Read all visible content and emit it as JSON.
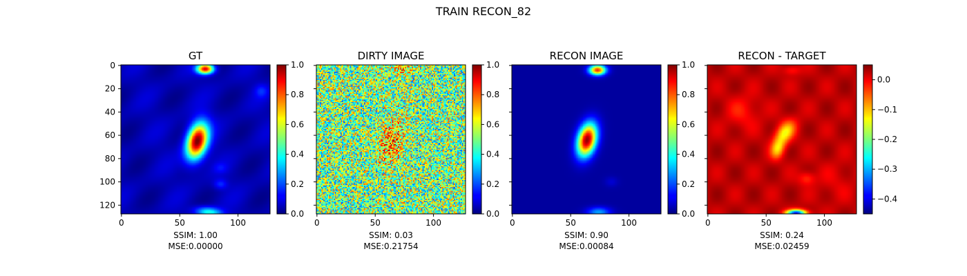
{
  "figure": {
    "title": "TRAIN RECON_82"
  },
  "chart_data": [
    {
      "type": "heatmap",
      "title": "GT",
      "colormap": "jet",
      "content": "gt",
      "x_ticks": [
        "0",
        "50",
        "100"
      ],
      "y_ticks": [
        "0",
        "20",
        "40",
        "60",
        "80",
        "100",
        "120"
      ],
      "xlim": [
        0,
        128
      ],
      "ylim": [
        0,
        128
      ],
      "colorbar": {
        "range": [
          0,
          1
        ],
        "ticks": [
          "0.0",
          "0.2",
          "0.4",
          "0.6",
          "0.8",
          "1.0"
        ]
      },
      "caption": [
        "SSIM: 1.00",
        "MSE:0.00000"
      ]
    },
    {
      "type": "heatmap",
      "title": "DIRTY IMAGE",
      "colormap": "jet",
      "content": "dirty",
      "x_ticks": [
        "0",
        "50",
        "100"
      ],
      "y_ticks": [],
      "xlim": [
        0,
        128
      ],
      "ylim": [
        0,
        128
      ],
      "colorbar": {
        "range": [
          0,
          1
        ],
        "ticks": [
          "0.0",
          "0.2",
          "0.4",
          "0.6",
          "0.8",
          "1.0"
        ]
      },
      "caption": [
        "SSIM: 0.03",
        "MSE:0.21754"
      ]
    },
    {
      "type": "heatmap",
      "title": "RECON IMAGE",
      "colormap": "jet",
      "content": "recon",
      "x_ticks": [
        "0",
        "50",
        "100"
      ],
      "y_ticks": [],
      "xlim": [
        0,
        128
      ],
      "ylim": [
        0,
        128
      ],
      "colorbar": {
        "range": [
          0,
          1
        ],
        "ticks": [
          "0.0",
          "0.2",
          "0.4",
          "0.6",
          "0.8",
          "1.0"
        ]
      },
      "caption": [
        "SSIM: 0.90",
        "MSE:0.00084"
      ]
    },
    {
      "type": "heatmap",
      "title": "RECON - TARGET",
      "colormap": "jet",
      "content": "diff",
      "x_ticks": [
        "0",
        "50",
        "100"
      ],
      "y_ticks": [],
      "xlim": [
        0,
        128
      ],
      "ylim": [
        0,
        128
      ],
      "colorbar": {
        "range": [
          -0.45,
          0.05
        ],
        "ticks": [
          "0.0",
          "−0.1",
          "−0.2",
          "−0.3",
          "−0.4"
        ]
      },
      "caption": [
        "SSIM: 0.24",
        "MSE:0.02459"
      ]
    }
  ]
}
